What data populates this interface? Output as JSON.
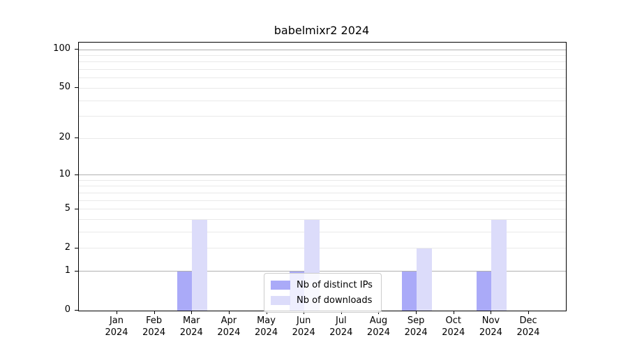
{
  "chart_data": {
    "type": "bar",
    "title": "babelmixr2 2024",
    "categories": [
      "Jan",
      "Feb",
      "Mar",
      "Apr",
      "May",
      "Jun",
      "Jul",
      "Aug",
      "Sep",
      "Oct",
      "Nov",
      "Dec"
    ],
    "year_label": "2024",
    "series": [
      {
        "name": "Nb of distinct IPs",
        "color": "#aaaaf8",
        "values": [
          0,
          0,
          1,
          0,
          0,
          1,
          0,
          0,
          1,
          0,
          1,
          0
        ]
      },
      {
        "name": "Nb of downloads",
        "color": "#dcdcfa",
        "values": [
          0,
          0,
          4,
          0,
          0,
          4,
          0,
          0,
          2,
          0,
          4,
          0
        ]
      }
    ],
    "y_axis": {
      "tick_values": [
        0,
        1,
        2,
        5,
        10,
        20,
        50,
        100
      ],
      "major_gridlines": [
        1,
        10,
        100
      ],
      "minor_gridlines": [
        2,
        3,
        4,
        5,
        6,
        7,
        8,
        9,
        20,
        30,
        40,
        50,
        60,
        70,
        80,
        90
      ],
      "scale": "log10(1+y)",
      "ylim": [
        0,
        113.3
      ]
    },
    "xlabel": "",
    "ylabel": "",
    "grid": true,
    "legend_position": "lower center"
  },
  "style": {
    "background": "#ffffff",
    "major_grid_color": "#b0b0b0",
    "minor_grid_color": "#e9e9e9",
    "spine_color": "#000000",
    "text_color": "#000000",
    "legend_border_color": "#cccccc"
  }
}
